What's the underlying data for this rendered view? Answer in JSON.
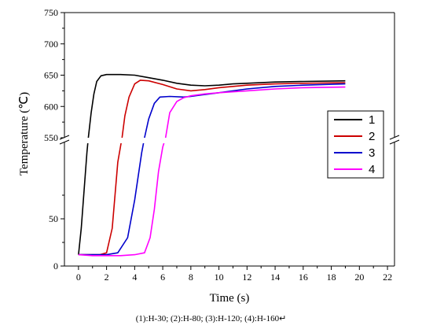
{
  "chart_data": {
    "type": "line",
    "xlabel": "Time (s)",
    "ylabel": "Temperature (℃)",
    "x_ticks": [
      "0",
      "2",
      "4",
      "6",
      "8",
      "10",
      "12",
      "14",
      "16",
      "18",
      "20",
      "22"
    ],
    "y_ticks_upper": [
      "550",
      "600",
      "650",
      "700",
      "750"
    ],
    "y_ticks_lower": [
      "0",
      "50"
    ],
    "xlim": [
      -1,
      22.5
    ],
    "ylim_upper": [
      550,
      750
    ],
    "ylim_lower": [
      0,
      130
    ],
    "axis_break": true,
    "grid": false,
    "legend_position": "right",
    "series": [
      {
        "name": "1",
        "color": "#000000",
        "points": [
          [
            0,
            12
          ],
          [
            0.2,
            40
          ],
          [
            0.4,
            80
          ],
          [
            0.6,
            120
          ],
          [
            0.7,
            550
          ],
          [
            0.9,
            590
          ],
          [
            1.1,
            620
          ],
          [
            1.3,
            640
          ],
          [
            1.6,
            649
          ],
          [
            2.0,
            651
          ],
          [
            3.0,
            651
          ],
          [
            4.0,
            650
          ],
          [
            5.0,
            646
          ],
          [
            6.0,
            642
          ],
          [
            7.0,
            637
          ],
          [
            8.0,
            634
          ],
          [
            9.0,
            633
          ],
          [
            10.0,
            634
          ],
          [
            11.0,
            636
          ],
          [
            12.0,
            637
          ],
          [
            14.0,
            639
          ],
          [
            16.0,
            640
          ],
          [
            19.0,
            641
          ]
        ]
      },
      {
        "name": "2",
        "color": "#cc0000",
        "points": [
          [
            0,
            12
          ],
          [
            1.5,
            12
          ],
          [
            2.0,
            14
          ],
          [
            2.4,
            40
          ],
          [
            2.8,
            110
          ],
          [
            3.1,
            550
          ],
          [
            3.3,
            585
          ],
          [
            3.6,
            615
          ],
          [
            4.0,
            636
          ],
          [
            4.4,
            642
          ],
          [
            5.0,
            641
          ],
          [
            6.0,
            635
          ],
          [
            7.0,
            628
          ],
          [
            8.0,
            625
          ],
          [
            9.0,
            627
          ],
          [
            10.0,
            630
          ],
          [
            12.0,
            634
          ],
          [
            14.0,
            636
          ],
          [
            16.0,
            637
          ],
          [
            19.0,
            638
          ]
        ]
      },
      {
        "name": "3",
        "color": "#0000cc",
        "points": [
          [
            0,
            12
          ],
          [
            2.0,
            12
          ],
          [
            2.8,
            14
          ],
          [
            3.5,
            30
          ],
          [
            4.0,
            70
          ],
          [
            4.5,
            120
          ],
          [
            4.7,
            550
          ],
          [
            5.0,
            580
          ],
          [
            5.4,
            605
          ],
          [
            5.8,
            615
          ],
          [
            6.5,
            616
          ],
          [
            7.5,
            615
          ],
          [
            8.0,
            616
          ],
          [
            9.0,
            619
          ],
          [
            10.0,
            622
          ],
          [
            12.0,
            628
          ],
          [
            14.0,
            632
          ],
          [
            16.0,
            634
          ],
          [
            19.0,
            636
          ]
        ]
      },
      {
        "name": "4",
        "color": "#ff00ff",
        "points": [
          [
            0,
            12
          ],
          [
            1.0,
            11
          ],
          [
            2.0,
            11
          ],
          [
            3.0,
            11
          ],
          [
            4.0,
            12
          ],
          [
            4.7,
            14
          ],
          [
            5.1,
            30
          ],
          [
            5.4,
            60
          ],
          [
            5.7,
            100
          ],
          [
            6.0,
            126
          ],
          [
            6.2,
            550
          ],
          [
            6.5,
            590
          ],
          [
            7.0,
            608
          ],
          [
            7.5,
            614
          ],
          [
            8.0,
            617
          ],
          [
            9.0,
            620
          ],
          [
            10.0,
            622
          ],
          [
            12.0,
            625
          ],
          [
            14.0,
            628
          ],
          [
            16.0,
            630
          ],
          [
            19.0,
            631
          ]
        ]
      }
    ],
    "caption": "(1):H-30; (2):H-80; (3):H-120; (4):H-160↵"
  }
}
